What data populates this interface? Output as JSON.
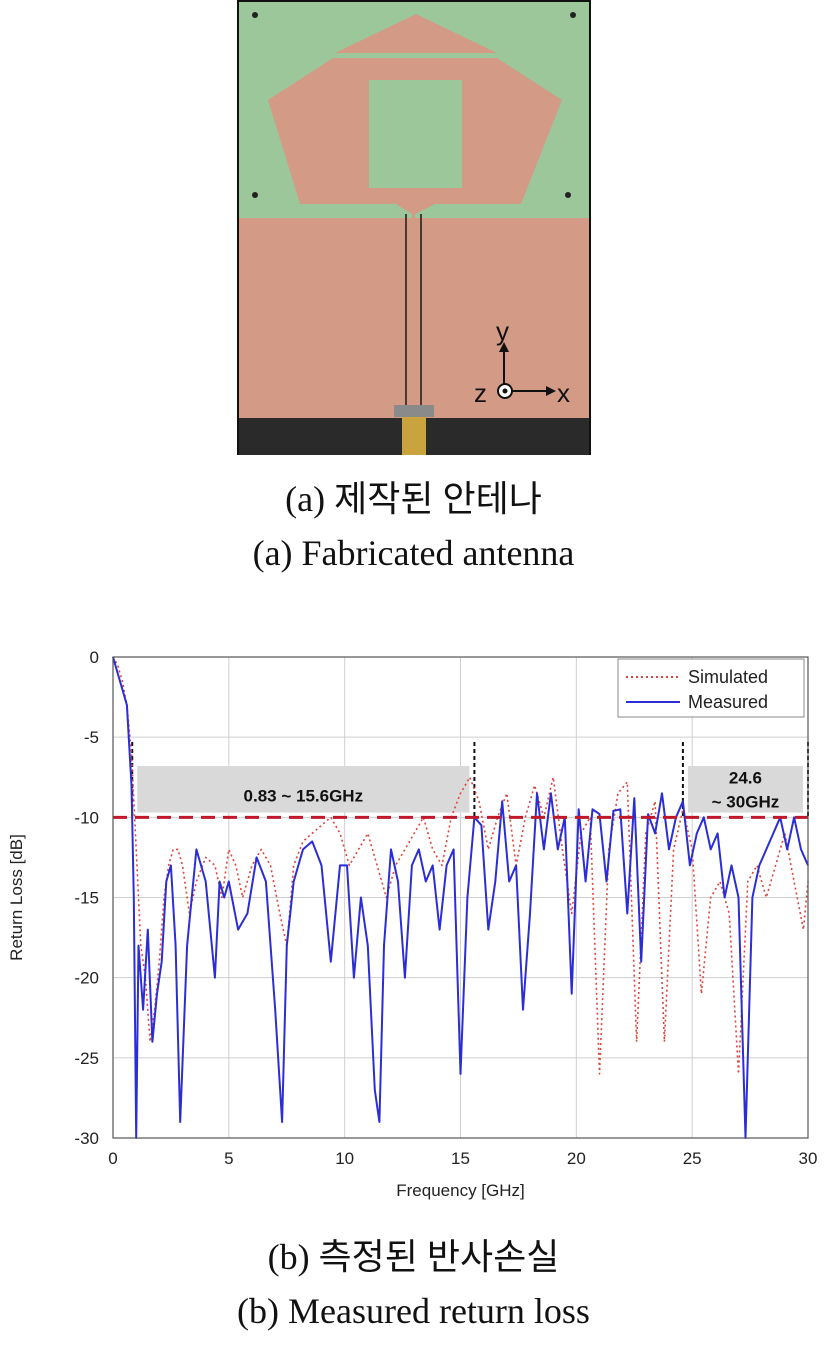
{
  "captions": {
    "a_ko": "(a) 제작된 안테나",
    "a_en": "(a) Fabricated antenna",
    "b_ko": "(b) 측정된 반사손실",
    "b_en": "(b) Measured return loss"
  },
  "photo": {
    "axis_y": "y",
    "axis_z": "z",
    "axis_x": "x",
    "colors": {
      "substrate": "#9cc79a",
      "copper": "#d39a86",
      "background": "#111111"
    }
  },
  "chart_data": {
    "type": "line",
    "xlabel": "Frequency [GHz]",
    "ylabel": "Return Loss [dB]",
    "xlim": [
      0,
      30
    ],
    "ylim": [
      -30,
      0
    ],
    "xticks": [
      0,
      5,
      10,
      15,
      20,
      25,
      30
    ],
    "yticks": [
      0,
      -5,
      -10,
      -15,
      -20,
      -25,
      -30
    ],
    "grid": true,
    "legend": "top-right",
    "threshold": {
      "y": -10,
      "color": "#c0182a"
    },
    "bands": [
      {
        "label": "0.83 ~ 15.6GHz",
        "x_start": 0.83,
        "x_end": 15.6
      },
      {
        "label_line1": "24.6",
        "label_line2": "~ 30GHz",
        "x_start": 24.6,
        "x_end": 30
      }
    ],
    "series": [
      {
        "name": "Simulated",
        "color": "#e0443c",
        "style": "dotted",
        "x": [
          0,
          0.2,
          0.4,
          0.6,
          0.8,
          1.0,
          1.2,
          1.4,
          1.6,
          1.8,
          2.0,
          2.2,
          2.4,
          2.6,
          2.8,
          3.0,
          3.3,
          3.6,
          4.0,
          4.4,
          4.7,
          5.0,
          5.3,
          5.6,
          6.0,
          6.4,
          6.8,
          7.2,
          7.5,
          7.8,
          8.2,
          8.6,
          9.0,
          9.4,
          9.8,
          10.2,
          10.6,
          11.0,
          11.4,
          11.8,
          12.2,
          12.6,
          13.0,
          13.4,
          13.8,
          14.2,
          14.6,
          15.0,
          15.4,
          15.8,
          16.2,
          16.6,
          17.0,
          17.4,
          17.8,
          18.2,
          18.6,
          19.0,
          19.4,
          19.8,
          20.2,
          20.6,
          21.0,
          21.4,
          21.8,
          22.2,
          22.6,
          23.0,
          23.4,
          23.8,
          24.2,
          24.6,
          25.0,
          25.4,
          25.8,
          26.2,
          26.6,
          27.0,
          27.4,
          27.8,
          28.2,
          28.6,
          29.0,
          29.4,
          29.8,
          30.0
        ],
        "y": [
          0,
          -0.5,
          -1.5,
          -3,
          -6,
          -12,
          -18,
          -20,
          -24,
          -22,
          -19,
          -15,
          -13,
          -12,
          -12,
          -13,
          -16,
          -14,
          -12.5,
          -13,
          -15,
          -12,
          -13,
          -15,
          -13,
          -12,
          -13,
          -16,
          -18,
          -13,
          -11.5,
          -11,
          -10.5,
          -10,
          -11,
          -13,
          -12,
          -11,
          -13,
          -15,
          -13,
          -12,
          -11,
          -10,
          -12,
          -13,
          -10,
          -8.5,
          -7.5,
          -9,
          -12,
          -10,
          -8.5,
          -13,
          -10,
          -8,
          -10,
          -7.5,
          -12,
          -16,
          -11,
          -10,
          -26,
          -12,
          -8.5,
          -7.8,
          -24,
          -11,
          -9,
          -24,
          -12,
          -9.5,
          -12,
          -21,
          -15,
          -14,
          -16,
          -26,
          -14,
          -13,
          -15,
          -13,
          -11,
          -14,
          -17,
          -14
        ]
      },
      {
        "name": "Measured",
        "color": "#2b2ed6",
        "style": "solid",
        "x": [
          0,
          0.2,
          0.4,
          0.6,
          0.8,
          0.9,
          1.0,
          1.1,
          1.3,
          1.5,
          1.7,
          1.9,
          2.1,
          2.3,
          2.5,
          2.7,
          2.9,
          3.2,
          3.6,
          4.0,
          4.4,
          4.6,
          4.8,
          5.0,
          5.4,
          5.8,
          6.2,
          6.6,
          7.0,
          7.3,
          7.5,
          7.8,
          8.2,
          8.6,
          9.0,
          9.4,
          9.8,
          10.1,
          10.4,
          10.7,
          11.0,
          11.3,
          11.5,
          11.7,
          12.0,
          12.3,
          12.6,
          12.9,
          13.2,
          13.5,
          13.8,
          14.1,
          14.4,
          14.7,
          15.0,
          15.3,
          15.6,
          15.9,
          16.2,
          16.5,
          16.8,
          17.1,
          17.4,
          17.7,
          18.0,
          18.3,
          18.6,
          18.9,
          19.2,
          19.5,
          19.8,
          20.1,
          20.4,
          20.7,
          21.0,
          21.3,
          21.6,
          21.9,
          22.2,
          22.5,
          22.8,
          23.1,
          23.4,
          23.7,
          24.0,
          24.3,
          24.6,
          24.9,
          25.2,
          25.5,
          25.8,
          26.1,
          26.4,
          26.7,
          27.0,
          27.3,
          27.6,
          27.9,
          28.2,
          28.5,
          28.8,
          29.1,
          29.4,
          29.7,
          30.0
        ],
        "y": [
          0,
          -1,
          -2,
          -3,
          -8,
          -15,
          -30,
          -18,
          -22,
          -17,
          -24,
          -21,
          -19,
          -14,
          -13,
          -18,
          -29,
          -18,
          -12,
          -14,
          -20,
          -14,
          -15,
          -14,
          -17,
          -16,
          -12.5,
          -14,
          -22,
          -29,
          -18,
          -14,
          -12,
          -11.5,
          -13,
          -19,
          -13,
          -13,
          -20,
          -15,
          -18,
          -27,
          -29,
          -18,
          -12,
          -14,
          -20,
          -13,
          -12,
          -14,
          -13,
          -17,
          -13,
          -12,
          -26,
          -15,
          -10,
          -10.5,
          -17,
          -14,
          -9,
          -14,
          -13,
          -22,
          -16,
          -8.5,
          -12,
          -8.5,
          -12,
          -10,
          -21,
          -9.5,
          -14,
          -9.5,
          -9.8,
          -14,
          -9.6,
          -9.5,
          -16,
          -8.8,
          -19,
          -9.8,
          -11,
          -8.5,
          -12,
          -10,
          -9,
          -13,
          -11,
          -10,
          -12,
          -11,
          -15,
          -13,
          -15,
          -30,
          -15,
          -13,
          -12,
          -11,
          -10,
          -12,
          -10,
          -12,
          -13
        ]
      }
    ]
  }
}
